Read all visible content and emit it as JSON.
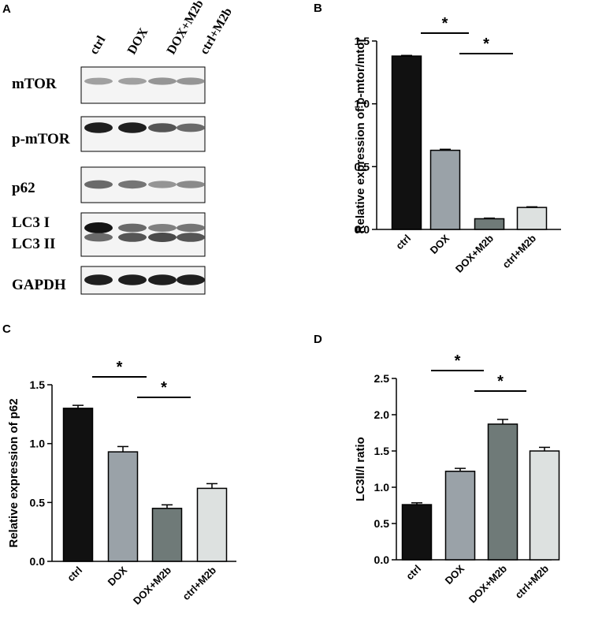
{
  "figure_panels": {
    "blot": {
      "letter": "A",
      "lanes": [
        "ctrl",
        "DOX",
        "DOX+M2b",
        "ctrl+M2b"
      ],
      "rows": [
        {
          "label": "mTOR",
          "intensity": [
            0.35,
            0.35,
            0.4,
            0.4
          ]
        },
        {
          "label": "p-mTOR",
          "intensity": [
            0.95,
            0.95,
            0.7,
            0.6
          ]
        },
        {
          "label": "p62",
          "intensity": [
            0.6,
            0.55,
            0.4,
            0.45
          ]
        },
        {
          "label": "LC3 I",
          "intensity": [
            1.0,
            0.6,
            0.5,
            0.55
          ]
        },
        {
          "label": "LC3 II",
          "intensity": [
            0.6,
            0.7,
            0.75,
            0.7
          ]
        },
        {
          "label": "GAPDH",
          "intensity": [
            0.95,
            0.95,
            0.95,
            0.95
          ]
        }
      ]
    }
  },
  "chart_data": [
    {
      "letter": "B",
      "type": "bar",
      "categories": [
        "ctrl",
        "DOX",
        "DOX+M2b",
        "ctrl+M2b"
      ],
      "values": [
        1.38,
        0.63,
        0.085,
        0.175
      ],
      "errors": [
        0.005,
        0.008,
        0.005,
        0.005
      ],
      "colors": [
        "#111111",
        "#9aa2a8",
        "#6f7a78",
        "#dde1e0"
      ],
      "ylabel": "Relative expression of p-mtor/mtor",
      "ylim": [
        0,
        1.5
      ],
      "yticks": [
        "0.0",
        "0.5",
        "1.0",
        "1.5"
      ],
      "ytick_values": [
        0,
        0.5,
        1.0,
        1.5
      ],
      "significance": [
        {
          "from": 0,
          "to": 1,
          "label": "*"
        },
        {
          "from": 1,
          "to": 2,
          "label": "*"
        }
      ]
    },
    {
      "letter": "C",
      "type": "bar",
      "categories": [
        "ctrl",
        "DOX",
        "DOX+M2b",
        "ctrl+M2b"
      ],
      "values": [
        1.3,
        0.93,
        0.45,
        0.62
      ],
      "errors": [
        0.025,
        0.045,
        0.03,
        0.04
      ],
      "colors": [
        "#111111",
        "#9aa2a8",
        "#6f7a78",
        "#dde1e0"
      ],
      "ylabel": "Relative expression of  p62",
      "ylim": [
        0,
        1.5
      ],
      "yticks": [
        "0.0",
        "0.5",
        "1.0",
        "1.5"
      ],
      "ytick_values": [
        0,
        0.5,
        1.0,
        1.5
      ],
      "significance": [
        {
          "from": 0,
          "to": 1,
          "label": "*"
        },
        {
          "from": 1,
          "to": 2,
          "label": "*"
        }
      ]
    },
    {
      "letter": "D",
      "type": "bar",
      "categories": [
        "ctrl",
        "DOX",
        "DOX+M2b",
        "ctrl+M2b"
      ],
      "values": [
        0.76,
        1.22,
        1.87,
        1.5
      ],
      "errors": [
        0.025,
        0.04,
        0.065,
        0.05
      ],
      "colors": [
        "#111111",
        "#9aa2a8",
        "#6f7a78",
        "#dde1e0"
      ],
      "ylabel": "LC3II/I  ratio",
      "ylim": [
        0,
        2.5
      ],
      "yticks": [
        "0.0",
        "0.5",
        "1.0",
        "1.5",
        "2.0",
        "2.5"
      ],
      "ytick_values": [
        0,
        0.5,
        1.0,
        1.5,
        2.0,
        2.5
      ],
      "significance": [
        {
          "from": 0,
          "to": 1,
          "label": "*"
        },
        {
          "from": 1,
          "to": 2,
          "label": "*"
        }
      ]
    }
  ]
}
